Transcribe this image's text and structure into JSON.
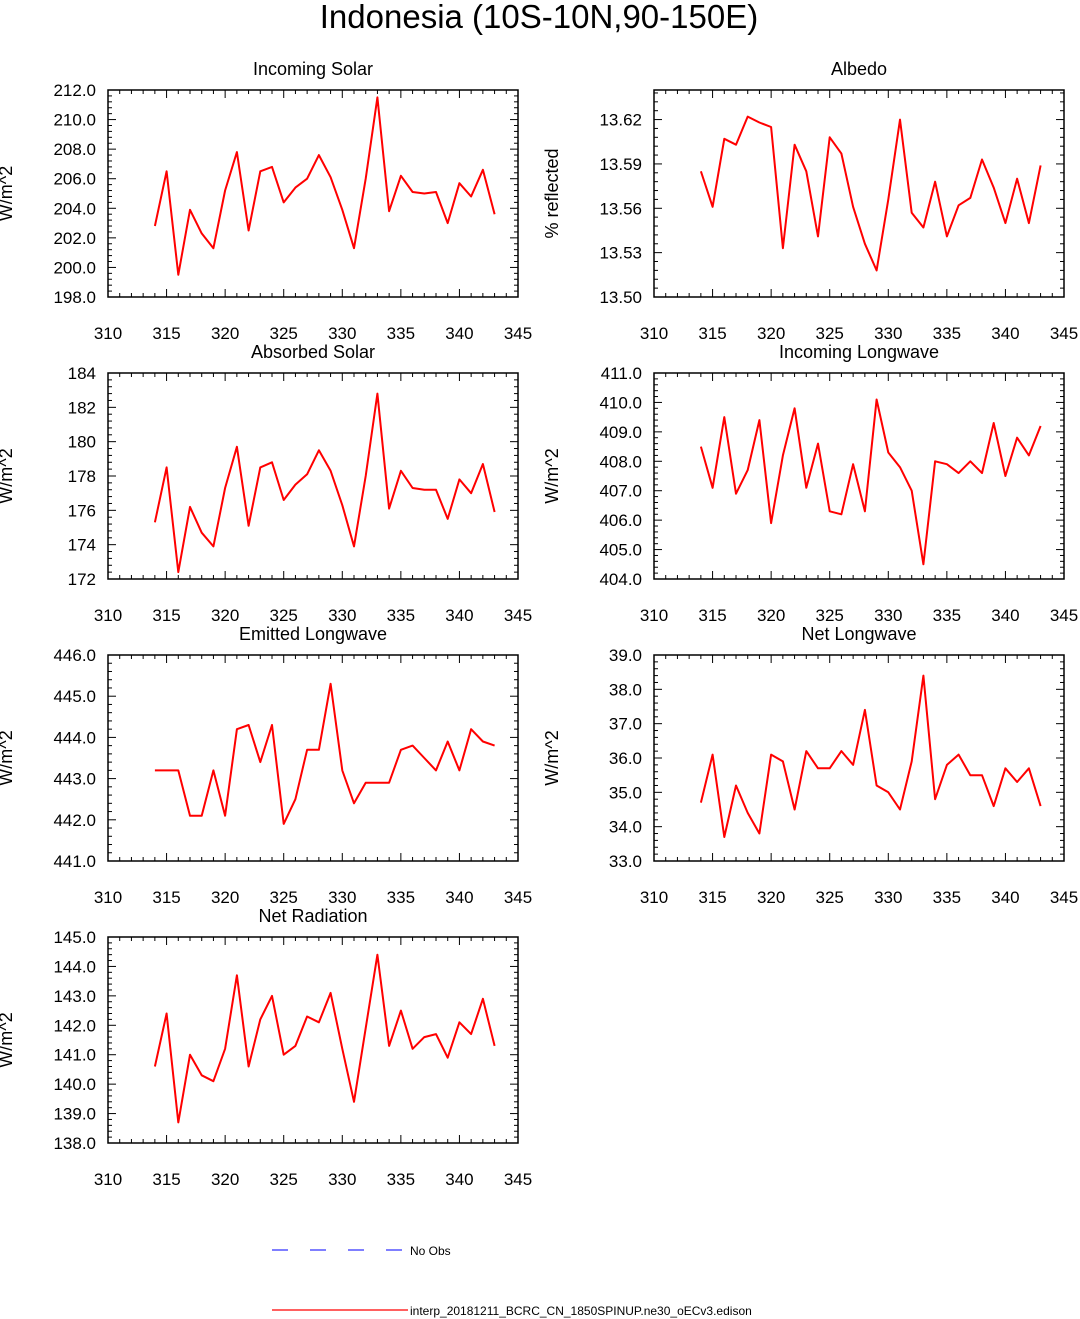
{
  "figure_title": "Indonesia (10S-10N,90-150E)",
  "legend": {
    "obs_label": "No Obs",
    "obs_color": "#3333ff",
    "model_label": "interp_20181211_BCRC_CN_1850SPINUP.ne30_oECv3.edison",
    "model_color": "#ff0000"
  },
  "chart_data": [
    {
      "type": "line",
      "title": "Incoming Solar",
      "ylabel": "W/m^2",
      "xlim": [
        310,
        345
      ],
      "x_ticks": [
        "310",
        "315",
        "320",
        "325",
        "330",
        "335",
        "340",
        "345"
      ],
      "ylim": [
        198.0,
        212.0
      ],
      "y_ticks": [
        "198.0",
        "200.0",
        "202.0",
        "204.0",
        "206.0",
        "208.0",
        "210.0",
        "212.0"
      ],
      "x": [
        314,
        315,
        316,
        317,
        318,
        319,
        320,
        321,
        322,
        323,
        324,
        325,
        326,
        327,
        328,
        329,
        330,
        331,
        332,
        333,
        334,
        335,
        336,
        337,
        338,
        339,
        340,
        341,
        342,
        343
      ],
      "series": [
        {
          "color": "#ff0000",
          "values": [
            202.8,
            206.5,
            199.5,
            203.9,
            202.3,
            201.3,
            205.2,
            207.8,
            202.5,
            206.5,
            206.8,
            204.4,
            205.4,
            206.0,
            207.6,
            206.1,
            203.9,
            201.3,
            206.0,
            211.5,
            203.8,
            206.2,
            205.1,
            205.0,
            205.1,
            203.0,
            205.7,
            204.8,
            206.6,
            203.6
          ]
        }
      ]
    },
    {
      "type": "line",
      "title": "Albedo",
      "ylabel": "% reflected",
      "xlim": [
        310,
        345
      ],
      "x_ticks": [
        "310",
        "315",
        "320",
        "325",
        "330",
        "335",
        "340",
        "345"
      ],
      "ylim": [
        13.5,
        13.64
      ],
      "y_ticks": [
        "13.50",
        "13.53",
        "13.56",
        "13.59",
        "13.62"
      ],
      "x": [
        314,
        315,
        316,
        317,
        318,
        319,
        320,
        321,
        322,
        323,
        324,
        325,
        326,
        327,
        328,
        329,
        330,
        331,
        332,
        333,
        334,
        335,
        336,
        337,
        338,
        339,
        340,
        341,
        342,
        343
      ],
      "series": [
        {
          "color": "#ff0000",
          "values": [
            13.585,
            13.561,
            13.607,
            13.603,
            13.622,
            13.618,
            13.615,
            13.533,
            13.603,
            13.585,
            13.541,
            13.608,
            13.597,
            13.561,
            13.536,
            13.518,
            13.566,
            13.62,
            13.557,
            13.547,
            13.578,
            13.541,
            13.562,
            13.567,
            13.593,
            13.574,
            13.55,
            13.58,
            13.55,
            13.589
          ]
        }
      ]
    },
    {
      "type": "line",
      "title": "Absorbed Solar",
      "ylabel": "W/m^2",
      "xlim": [
        310,
        345
      ],
      "x_ticks": [
        "310",
        "315",
        "320",
        "325",
        "330",
        "335",
        "340",
        "345"
      ],
      "ylim": [
        172,
        184
      ],
      "y_ticks": [
        "172",
        "174",
        "176",
        "178",
        "180",
        "182",
        "184"
      ],
      "x": [
        314,
        315,
        316,
        317,
        318,
        319,
        320,
        321,
        322,
        323,
        324,
        325,
        326,
        327,
        328,
        329,
        330,
        331,
        332,
        333,
        334,
        335,
        336,
        337,
        338,
        339,
        340,
        341,
        342,
        343
      ],
      "series": [
        {
          "color": "#ff0000",
          "values": [
            175.3,
            178.5,
            172.4,
            176.2,
            174.7,
            173.9,
            177.3,
            179.7,
            175.1,
            178.5,
            178.8,
            176.6,
            177.5,
            178.1,
            179.5,
            178.3,
            176.3,
            173.9,
            178.0,
            182.8,
            176.1,
            178.3,
            177.3,
            177.2,
            177.2,
            175.5,
            177.8,
            177.0,
            178.7,
            175.9
          ]
        }
      ]
    },
    {
      "type": "line",
      "title": "Incoming Longwave",
      "ylabel": "W/m^2",
      "xlim": [
        310,
        345
      ],
      "x_ticks": [
        "310",
        "315",
        "320",
        "325",
        "330",
        "335",
        "340",
        "345"
      ],
      "ylim": [
        404.0,
        411.0
      ],
      "y_ticks": [
        "404.0",
        "405.0",
        "406.0",
        "407.0",
        "408.0",
        "409.0",
        "410.0",
        "411.0"
      ],
      "x": [
        314,
        315,
        316,
        317,
        318,
        319,
        320,
        321,
        322,
        323,
        324,
        325,
        326,
        327,
        328,
        329,
        330,
        331,
        332,
        333,
        334,
        335,
        336,
        337,
        338,
        339,
        340,
        341,
        342,
        343
      ],
      "series": [
        {
          "color": "#ff0000",
          "values": [
            408.5,
            407.1,
            409.5,
            406.9,
            407.7,
            409.4,
            405.9,
            408.2,
            409.8,
            407.1,
            408.6,
            406.3,
            406.2,
            407.9,
            406.3,
            410.1,
            408.3,
            407.8,
            407.0,
            404.5,
            408.0,
            407.9,
            407.6,
            408.0,
            407.6,
            409.3,
            407.5,
            408.8,
            408.2,
            409.2
          ]
        }
      ]
    },
    {
      "type": "line",
      "title": "Emitted Longwave",
      "ylabel": "W/m^2",
      "xlim": [
        310,
        345
      ],
      "x_ticks": [
        "310",
        "315",
        "320",
        "325",
        "330",
        "335",
        "340",
        "345"
      ],
      "ylim": [
        441.0,
        446.0
      ],
      "y_ticks": [
        "441.0",
        "442.0",
        "443.0",
        "444.0",
        "445.0",
        "446.0"
      ],
      "x": [
        314,
        315,
        316,
        317,
        318,
        319,
        320,
        321,
        322,
        323,
        324,
        325,
        326,
        327,
        328,
        329,
        330,
        331,
        332,
        333,
        334,
        335,
        336,
        337,
        338,
        339,
        340,
        341,
        342,
        343
      ],
      "series": [
        {
          "color": "#ff0000",
          "values": [
            443.2,
            443.2,
            443.2,
            442.1,
            442.1,
            443.2,
            442.1,
            444.2,
            444.3,
            443.4,
            444.3,
            441.9,
            442.5,
            443.7,
            443.7,
            445.3,
            443.2,
            442.4,
            442.9,
            442.9,
            442.9,
            443.7,
            443.8,
            443.5,
            443.2,
            443.9,
            443.2,
            444.2,
            443.9,
            443.8
          ]
        }
      ]
    },
    {
      "type": "line",
      "title": "Net Longwave",
      "ylabel": "W/m^2",
      "xlim": [
        310,
        345
      ],
      "x_ticks": [
        "310",
        "315",
        "320",
        "325",
        "330",
        "335",
        "340",
        "345"
      ],
      "ylim": [
        33.0,
        39.0
      ],
      "y_ticks": [
        "33.0",
        "34.0",
        "35.0",
        "36.0",
        "37.0",
        "38.0",
        "39.0"
      ],
      "x": [
        314,
        315,
        316,
        317,
        318,
        319,
        320,
        321,
        322,
        323,
        324,
        325,
        326,
        327,
        328,
        329,
        330,
        331,
        332,
        333,
        334,
        335,
        336,
        337,
        338,
        339,
        340,
        341,
        342,
        343
      ],
      "series": [
        {
          "color": "#ff0000",
          "values": [
            34.7,
            36.1,
            33.7,
            35.2,
            34.4,
            33.8,
            36.1,
            35.9,
            34.5,
            36.2,
            35.7,
            35.7,
            36.2,
            35.8,
            37.4,
            35.2,
            35.0,
            34.5,
            35.9,
            38.4,
            34.8,
            35.8,
            36.1,
            35.5,
            35.5,
            34.6,
            35.7,
            35.3,
            35.7,
            34.6
          ]
        }
      ]
    },
    {
      "type": "line",
      "title": "Net Radiation",
      "ylabel": "W/m^2",
      "xlim": [
        310,
        345
      ],
      "x_ticks": [
        "310",
        "315",
        "320",
        "325",
        "330",
        "335",
        "340",
        "345"
      ],
      "ylim": [
        138.0,
        145.0
      ],
      "y_ticks": [
        "138.0",
        "139.0",
        "140.0",
        "141.0",
        "142.0",
        "143.0",
        "144.0",
        "145.0"
      ],
      "x": [
        314,
        315,
        316,
        317,
        318,
        319,
        320,
        321,
        322,
        323,
        324,
        325,
        326,
        327,
        328,
        329,
        330,
        331,
        332,
        333,
        334,
        335,
        336,
        337,
        338,
        339,
        340,
        341,
        342,
        343
      ],
      "series": [
        {
          "color": "#ff0000",
          "values": [
            140.6,
            142.4,
            138.7,
            141.0,
            140.3,
            140.1,
            141.2,
            143.7,
            140.6,
            142.2,
            143.0,
            141.0,
            141.3,
            142.3,
            142.1,
            143.1,
            141.2,
            139.4,
            141.9,
            144.4,
            141.3,
            142.5,
            141.2,
            141.6,
            141.7,
            140.9,
            142.1,
            141.7,
            142.9,
            141.3
          ]
        }
      ]
    }
  ]
}
